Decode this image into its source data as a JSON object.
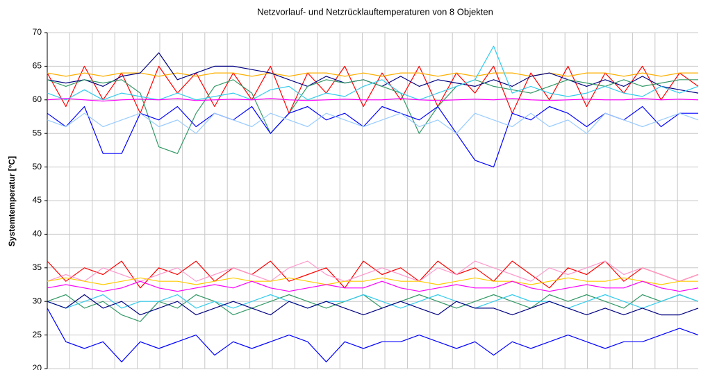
{
  "chart_data": {
    "type": "line",
    "title": "Netzvorlauf-  und Netzrücklauftemperaturen von 8 Objekten",
    "y_label": "Systemtemperatur [°C]",
    "ylim": [
      20,
      70
    ],
    "yticks": [
      20,
      25,
      30,
      35,
      40,
      45,
      50,
      55,
      60,
      65,
      70
    ],
    "grid": true,
    "series": [
      {
        "color": "#ff0000",
        "values": [
          64,
          59,
          65,
          60,
          64,
          58,
          65,
          61,
          64,
          59,
          64,
          60,
          65,
          58,
          64,
          61,
          65,
          59,
          64,
          60,
          65,
          59,
          64,
          61,
          65,
          58,
          64,
          60,
          65,
          59,
          64,
          61,
          65,
          60,
          64,
          62
        ]
      },
      {
        "color": "#ffb000",
        "values": [
          64,
          63.5,
          64,
          63.5,
          64,
          64,
          63.5,
          64,
          63.5,
          64,
          64,
          63.5,
          64,
          63.5,
          64,
          64,
          63.5,
          64,
          63.5,
          64,
          64,
          63.5,
          64,
          63.5,
          64,
          64,
          63.5,
          64,
          63.5,
          64,
          64,
          63.5,
          64,
          63.5,
          64,
          64
        ]
      },
      {
        "color": "#000080",
        "values": [
          63,
          62.5,
          63,
          62,
          63.5,
          64,
          67,
          63,
          64,
          65,
          65,
          64.5,
          64,
          63,
          62,
          63.5,
          62.5,
          63,
          62,
          63.5,
          62,
          63,
          62.5,
          62,
          63,
          62,
          63.5,
          64,
          63,
          62,
          63,
          62,
          63.5,
          62,
          61.5,
          61
        ]
      },
      {
        "color": "#339966",
        "values": [
          63,
          62,
          63,
          62.5,
          63,
          61,
          53,
          52,
          58,
          62,
          63,
          61,
          55,
          58,
          62,
          63,
          62.5,
          63,
          62,
          61,
          55,
          59,
          62,
          63,
          62,
          61.5,
          61,
          62,
          63,
          62.5,
          62,
          63,
          62,
          62.5,
          63,
          63
        ]
      },
      {
        "color": "#33ccee",
        "values": [
          61,
          60,
          61.5,
          60,
          61,
          60.5,
          60,
          61,
          60,
          60.5,
          61,
          60,
          61.5,
          62,
          60,
          61,
          60.5,
          62,
          63,
          61,
          60,
          61,
          62,
          63,
          68,
          61,
          62,
          61,
          60.5,
          61,
          62,
          61,
          60.5,
          62,
          61,
          62
        ]
      },
      {
        "color": "#ff00ff",
        "values": [
          60,
          60.2,
          60,
          59.8,
          60,
          60.1,
          60,
          60.2,
          59.9,
          60,
          60.1,
          60,
          60.2,
          60,
          59.9,
          60,
          60.1,
          60,
          60,
          60.2,
          60,
          59.9,
          60,
          60.1,
          60,
          60.2,
          60,
          59.9,
          60,
          60.1,
          60,
          60,
          60.2,
          60,
          60.1,
          60
        ]
      },
      {
        "color": "#0000ff",
        "values": [
          58,
          56,
          59,
          52,
          52,
          58,
          57,
          59,
          56,
          58,
          57,
          59,
          55,
          58,
          59,
          57,
          58,
          56,
          59,
          58,
          57,
          59,
          55,
          51,
          50,
          58,
          57,
          59,
          58,
          56,
          58,
          57,
          59,
          56,
          58,
          58
        ]
      },
      {
        "color": "#99ccff",
        "values": [
          57,
          56,
          58,
          56,
          57,
          58,
          56,
          57,
          55,
          58,
          57,
          56,
          58,
          57,
          56,
          58,
          57,
          56,
          57,
          58,
          56,
          57,
          55,
          58,
          57,
          56,
          58,
          56,
          57,
          55,
          58,
          57,
          56,
          57,
          58,
          57
        ]
      },
      {
        "color": "#ff0000",
        "values": [
          36,
          33,
          35,
          34,
          36,
          32,
          35,
          34,
          36,
          33,
          35,
          34,
          36,
          33,
          34,
          35,
          32,
          36,
          34,
          35,
          33,
          36,
          34,
          35,
          33,
          36,
          34,
          32,
          35,
          34,
          36,
          33,
          35,
          34,
          33,
          34
        ]
      },
      {
        "color": "#ff99cc",
        "values": [
          33,
          34,
          33,
          35,
          34,
          33,
          34,
          35,
          33,
          34,
          35,
          34,
          33,
          35,
          36,
          34,
          33,
          34,
          35,
          34,
          33,
          35,
          34,
          36,
          35,
          34,
          33,
          35,
          34,
          35,
          36,
          34,
          35,
          34,
          33,
          34
        ]
      },
      {
        "color": "#ffcc00",
        "values": [
          33,
          33.5,
          33,
          32.5,
          33,
          33.5,
          33,
          33,
          32.5,
          33,
          33.5,
          33,
          33,
          33.5,
          33,
          32.5,
          33,
          33,
          33.5,
          33,
          33,
          32.5,
          33,
          33.5,
          33,
          33,
          32.5,
          33,
          33.5,
          33,
          33,
          33.5,
          33,
          32.5,
          33,
          33
        ]
      },
      {
        "color": "#ff00ff",
        "values": [
          32,
          32.5,
          32,
          31.5,
          32,
          33,
          32,
          31.5,
          32,
          32.5,
          32,
          33,
          32,
          31.5,
          32,
          32.5,
          32,
          32,
          33,
          32,
          31.5,
          32,
          32.5,
          32,
          32,
          33,
          32,
          31.5,
          32,
          32.5,
          32,
          32,
          33,
          32,
          31.5,
          32
        ]
      },
      {
        "color": "#339966",
        "values": [
          30,
          31,
          29,
          30,
          28,
          27,
          30,
          29,
          31,
          30,
          28,
          29,
          30,
          31,
          30,
          29,
          30,
          31,
          29,
          30,
          31,
          30,
          29,
          30,
          31,
          30,
          29,
          31,
          30,
          31,
          30,
          29,
          31,
          30,
          31,
          30
        ]
      },
      {
        "color": "#33ccee",
        "values": [
          30,
          29,
          30,
          31,
          29,
          30,
          30,
          31,
          29,
          30,
          29,
          30,
          31,
          30,
          29,
          30,
          30,
          31,
          30,
          29,
          30,
          31,
          30,
          29,
          30,
          31,
          30,
          30,
          29,
          30,
          31,
          30,
          29,
          30,
          31,
          30
        ]
      },
      {
        "color": "#000080",
        "values": [
          30,
          29,
          31,
          29,
          30,
          28,
          29,
          30,
          28,
          29,
          30,
          29,
          28,
          30,
          29,
          30,
          29,
          28,
          29,
          30,
          29,
          28,
          30,
          29,
          29,
          28,
          29,
          30,
          29,
          28,
          29,
          28,
          29,
          28,
          28,
          29
        ]
      },
      {
        "color": "#0000ff",
        "values": [
          29,
          24,
          23,
          24,
          21,
          24,
          23,
          24,
          25,
          22,
          24,
          23,
          24,
          25,
          24,
          21,
          24,
          23,
          24,
          24,
          25,
          24,
          23,
          24,
          22,
          24,
          23,
          24,
          25,
          24,
          23,
          24,
          24,
          25,
          26,
          25
        ]
      }
    ]
  }
}
